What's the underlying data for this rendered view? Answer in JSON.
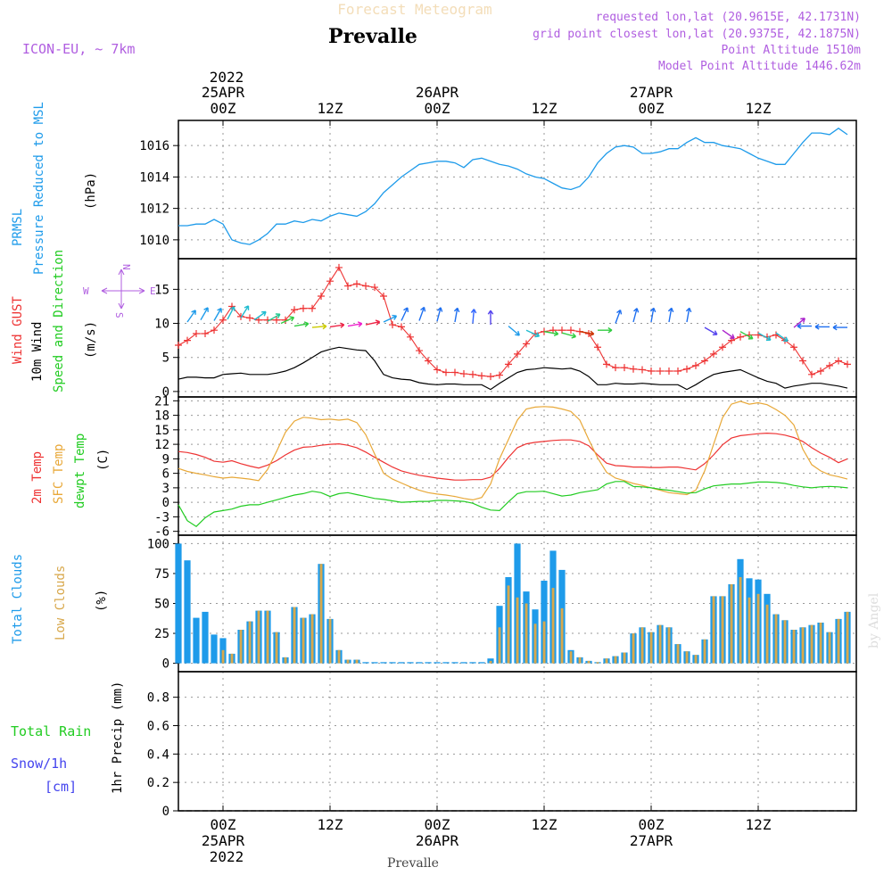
{
  "header": {
    "title_faded": "Forecast Meteogram",
    "location": "Prevalle",
    "model": "ICON-EU, ~ 7km",
    "requested": "requested lon,lat (20.9615E, 42.1731N)",
    "grid_point": "grid point closest lon,lat (20.9375E, 42.1875N)",
    "point_alt": "Point Altitude 1510m",
    "model_alt": "Model Point Altitude 1446.62m"
  },
  "time_axis": {
    "year": "2022",
    "top_labels": [
      {
        "t": 0,
        "date": "25APR",
        "hour": "00Z"
      },
      {
        "t": 12,
        "date": "",
        "hour": "12Z"
      },
      {
        "t": 24,
        "date": "26APR",
        "hour": "00Z"
      },
      {
        "t": 36,
        "date": "",
        "hour": "12Z"
      },
      {
        "t": 48,
        "date": "27APR",
        "hour": "00Z"
      },
      {
        "t": 60,
        "date": "",
        "hour": "12Z"
      }
    ],
    "t_range": [
      -5,
      71
    ],
    "footer_location": "Prevalle"
  },
  "colors": {
    "pressure": "#1e9bea",
    "gust": "#ee3333",
    "wind": "#000000",
    "temp2m": "#ee3333",
    "sfc": "#e8a838",
    "dewpt": "#22cc22",
    "total_clouds": "#1e9bea",
    "low_clouds": "#d8a84c",
    "violet": "#b05ee0",
    "rain": "#22cc22",
    "snow": "#4444ee"
  },
  "panel_labels": {
    "pressure": [
      "PRMSL",
      "Pressure Reduced to MSL"
    ],
    "pressure_unit": "(hPa)",
    "wind": [
      "Wind GUST",
      "10m Wind",
      "Speed and Direction"
    ],
    "wind_unit": "(m/s)",
    "compass": {
      "n": "N",
      "s": "S",
      "w": "W",
      "e": "E"
    },
    "temp": [
      "2m Temp",
      "SFC Temp",
      "dewpt Temp"
    ],
    "temp_unit": "(C)",
    "clouds": [
      "Total Clouds",
      "Low Clouds"
    ],
    "clouds_unit": "(%)",
    "precip": [
      "Total  Rain",
      "Snow/1h",
      "[cm]"
    ],
    "precip_unit": "1hr Precip (mm)",
    "watermark": "by Angel"
  },
  "chart_data": [
    {
      "type": "line",
      "name": "pressure",
      "ylabel": "(hPa)",
      "ylim": [
        1008.8,
        1017.6
      ],
      "yticks": [
        1010,
        1012,
        1014,
        1016
      ],
      "x": [
        -5,
        -4,
        -3,
        -2,
        -1,
        0,
        1,
        2,
        3,
        4,
        5,
        6,
        7,
        8,
        9,
        10,
        11,
        12,
        13,
        14,
        15,
        16,
        17,
        18,
        19,
        20,
        21,
        22,
        23,
        24,
        25,
        26,
        27,
        28,
        29,
        30,
        31,
        32,
        33,
        34,
        35,
        36,
        37,
        38,
        39,
        40,
        41,
        42,
        43,
        44,
        45,
        46,
        47,
        48,
        49,
        50,
        51,
        52,
        53,
        54,
        55,
        56,
        57,
        58,
        59,
        60,
        61,
        62,
        63,
        64,
        65,
        66,
        67,
        68,
        69,
        70
      ],
      "values": [
        1010.9,
        1010.9,
        1011.0,
        1011.0,
        1011.3,
        1011.0,
        1010.0,
        1009.8,
        1009.7,
        1010.0,
        1010.4,
        1011.0,
        1011.0,
        1011.2,
        1011.1,
        1011.3,
        1011.2,
        1011.5,
        1011.7,
        1011.6,
        1011.5,
        1011.8,
        1012.3,
        1013.0,
        1013.5,
        1014.0,
        1014.4,
        1014.8,
        1014.9,
        1015.0,
        1015.0,
        1014.9,
        1014.6,
        1015.1,
        1015.2,
        1015.0,
        1014.8,
        1014.7,
        1014.5,
        1014.2,
        1014.0,
        1013.9,
        1013.6,
        1013.3,
        1013.2,
        1013.4,
        1014.0,
        1014.9,
        1015.5,
        1015.9,
        1016.0,
        1015.9,
        1015.5,
        1015.5,
        1015.6,
        1015.8,
        1015.8,
        1016.2,
        1016.5,
        1016.2,
        1016.2,
        1016.0,
        1015.9,
        1015.8,
        1015.5,
        1015.2,
        1015.0,
        1014.8,
        1014.8,
        1015.5,
        1016.2,
        1016.8,
        1016.8,
        1016.7,
        1017.1,
        1016.7
      ]
    },
    {
      "type": "line",
      "name": "wind",
      "ylabel": "(m/s)",
      "ylim": [
        -0.8,
        19.5
      ],
      "yticks": [
        0,
        5,
        10,
        15
      ],
      "x": [
        -5,
        -4,
        -3,
        -2,
        -1,
        0,
        1,
        2,
        3,
        4,
        5,
        6,
        7,
        8,
        9,
        10,
        11,
        12,
        13,
        14,
        15,
        16,
        17,
        18,
        19,
        20,
        21,
        22,
        23,
        24,
        25,
        26,
        27,
        28,
        29,
        30,
        31,
        32,
        33,
        34,
        35,
        36,
        37,
        38,
        39,
        40,
        41,
        42,
        43,
        44,
        45,
        46,
        47,
        48,
        49,
        50,
        51,
        52,
        53,
        54,
        55,
        56,
        57,
        58,
        59,
        60,
        61,
        62,
        63,
        64,
        65,
        66,
        67,
        68,
        69,
        70
      ],
      "gust": [
        6.8,
        7.5,
        8.5,
        8.5,
        9.0,
        10.5,
        12.5,
        11.0,
        10.8,
        10.5,
        10.5,
        10.5,
        10.5,
        12.0,
        12.2,
        12.2,
        14.0,
        16.2,
        18.2,
        15.5,
        15.8,
        15.5,
        15.3,
        14.0,
        9.8,
        9.5,
        8.0,
        6.0,
        4.5,
        3.2,
        2.8,
        2.8,
        2.6,
        2.5,
        2.3,
        2.2,
        2.4,
        4.0,
        5.5,
        7.0,
        8.5,
        8.8,
        9.0,
        9.0,
        9.0,
        8.8,
        8.5,
        6.5,
        4.0,
        3.5,
        3.5,
        3.3,
        3.2,
        3.0,
        3.0,
        3.0,
        3.0,
        3.3,
        3.8,
        4.5,
        5.5,
        6.5,
        7.5,
        8.0,
        8.3,
        8.3,
        8.0,
        8.3,
        7.5,
        6.5,
        4.5,
        2.5,
        3.0,
        3.8,
        4.5,
        4.0
      ],
      "speed": [
        1.8,
        2.1,
        2.1,
        2.0,
        2.0,
        2.5,
        2.6,
        2.7,
        2.5,
        2.5,
        2.5,
        2.7,
        3.0,
        3.5,
        4.2,
        5.0,
        5.8,
        6.2,
        6.5,
        6.3,
        6.1,
        6.0,
        4.5,
        2.5,
        2.0,
        1.8,
        1.7,
        1.3,
        1.1,
        1.0,
        1.1,
        1.1,
        1.0,
        1.0,
        1.0,
        0.3,
        1.2,
        2.0,
        2.8,
        3.2,
        3.3,
        3.5,
        3.4,
        3.3,
        3.4,
        3.0,
        2.2,
        1.0,
        1.0,
        1.2,
        1.1,
        1.1,
        1.2,
        1.1,
        1.0,
        1.0,
        1.0,
        0.3,
        1.0,
        1.8,
        2.5,
        2.8,
        3.0,
        3.2,
        2.6,
        2.0,
        1.5,
        1.2,
        0.5,
        0.8,
        1.0,
        1.2,
        1.2,
        1.0,
        0.8,
        0.5
      ],
      "arrows": [
        {
          "t": -4,
          "v": 10.2,
          "ang": -55,
          "c": "#1e9bea"
        },
        {
          "t": -2.5,
          "v": 10.5,
          "ang": -60,
          "c": "#1e9bea"
        },
        {
          "t": -1,
          "v": 10.4,
          "ang": -60,
          "c": "#1e9bea"
        },
        {
          "t": 0.5,
          "v": 10.6,
          "ang": -62,
          "c": "#20bcd0"
        },
        {
          "t": 2,
          "v": 10.8,
          "ang": -58,
          "c": "#20bcd0"
        },
        {
          "t": 3.5,
          "v": 10.5,
          "ang": -35,
          "c": "#20bcd0"
        },
        {
          "t": 5,
          "v": 10.3,
          "ang": -30,
          "c": "#20c890"
        },
        {
          "t": 6.5,
          "v": 10.0,
          "ang": -25,
          "c": "#30cc40"
        },
        {
          "t": 8,
          "v": 9.6,
          "ang": -10,
          "c": "#30cc40"
        },
        {
          "t": 10,
          "v": 9.4,
          "ang": -5,
          "c": "#cccc00"
        },
        {
          "t": 12,
          "v": 9.5,
          "ang": -8,
          "c": "#ee2244"
        },
        {
          "t": 14,
          "v": 9.6,
          "ang": -10,
          "c": "#ee22cc"
        },
        {
          "t": 16,
          "v": 9.8,
          "ang": -12,
          "c": "#ee2244"
        },
        {
          "t": 18,
          "v": 10.2,
          "ang": -25,
          "c": "#1e9bea"
        },
        {
          "t": 20,
          "v": 10.4,
          "ang": -65,
          "c": "#1e6ff0"
        },
        {
          "t": 22,
          "v": 10.4,
          "ang": -70,
          "c": "#1e6ff0"
        },
        {
          "t": 24,
          "v": 10.3,
          "ang": -75,
          "c": "#1e6ff0"
        },
        {
          "t": 26,
          "v": 10.2,
          "ang": -80,
          "c": "#1e6ff0"
        },
        {
          "t": 28,
          "v": 10.0,
          "ang": -85,
          "c": "#3366ff"
        },
        {
          "t": 30,
          "v": 9.8,
          "ang": -90,
          "c": "#5544ee"
        },
        {
          "t": 32,
          "v": 9.6,
          "ang": 40,
          "c": "#1e9bea"
        },
        {
          "t": 34,
          "v": 9.0,
          "ang": 25,
          "c": "#20bcd0"
        },
        {
          "t": 36,
          "v": 8.8,
          "ang": 10,
          "c": "#30cc40"
        },
        {
          "t": 38,
          "v": 8.6,
          "ang": 15,
          "c": "#30cc40"
        },
        {
          "t": 40,
          "v": 8.8,
          "ang": 10,
          "c": "#cc3300"
        },
        {
          "t": 42,
          "v": 9.0,
          "ang": 0,
          "c": "#30cc40"
        },
        {
          "t": 44,
          "v": 10.0,
          "ang": -70,
          "c": "#1e6ff0"
        },
        {
          "t": 46,
          "v": 10.2,
          "ang": -75,
          "c": "#1e6ff0"
        },
        {
          "t": 48,
          "v": 10.2,
          "ang": -80,
          "c": "#1e6ff0"
        },
        {
          "t": 50,
          "v": 10.2,
          "ang": -80,
          "c": "#1e6ff0"
        },
        {
          "t": 52,
          "v": 10.2,
          "ang": -80,
          "c": "#1e6ff0"
        },
        {
          "t": 54,
          "v": 9.4,
          "ang": 30,
          "c": "#5544ee"
        },
        {
          "t": 56,
          "v": 9.0,
          "ang": 35,
          "c": "#aa22cc"
        },
        {
          "t": 58,
          "v": 8.8,
          "ang": 30,
          "c": "#30cc40"
        },
        {
          "t": 60,
          "v": 8.6,
          "ang": 30,
          "c": "#20bcd0"
        },
        {
          "t": 62,
          "v": 8.6,
          "ang": 35,
          "c": "#20bcd0"
        },
        {
          "t": 64,
          "v": 9.4,
          "ang": -40,
          "c": "#aa22cc"
        },
        {
          "t": 66,
          "v": 9.6,
          "ang": 180,
          "c": "#1e6ff0"
        },
        {
          "t": 68,
          "v": 9.5,
          "ang": 180,
          "c": "#1e6ff0"
        },
        {
          "t": 70,
          "v": 9.4,
          "ang": 180,
          "c": "#1e6ff0"
        }
      ]
    },
    {
      "type": "line",
      "name": "temperature",
      "ylabel": "(C)",
      "ylim": [
        -6.8,
        21.8
      ],
      "yticks": [
        -6,
        -3,
        0,
        3,
        6,
        9,
        12,
        15,
        18,
        21
      ],
      "x": [
        -5,
        -4,
        -3,
        -2,
        -1,
        0,
        1,
        2,
        3,
        4,
        5,
        6,
        7,
        8,
        9,
        10,
        11,
        12,
        13,
        14,
        15,
        16,
        17,
        18,
        19,
        20,
        21,
        22,
        23,
        24,
        25,
        26,
        27,
        28,
        29,
        30,
        31,
        32,
        33,
        34,
        35,
        36,
        37,
        38,
        39,
        40,
        41,
        42,
        43,
        44,
        45,
        46,
        47,
        48,
        49,
        50,
        51,
        52,
        53,
        54,
        55,
        56,
        57,
        58,
        59,
        60,
        61,
        62,
        63,
        64,
        65,
        66,
        67,
        68,
        69,
        70
      ],
      "temp2m": [
        10.5,
        10.3,
        9.9,
        9.3,
        8.5,
        8.3,
        8.6,
        8.0,
        7.5,
        7.1,
        7.7,
        8.6,
        9.8,
        10.8,
        11.4,
        11.5,
        11.8,
        12.0,
        12.1,
        11.8,
        11.3,
        10.4,
        9.3,
        8.3,
        7.3,
        6.5,
        6.0,
        5.6,
        5.3,
        5.0,
        4.8,
        4.6,
        4.6,
        4.7,
        4.7,
        5.2,
        7.0,
        9.3,
        11.3,
        12.1,
        12.4,
        12.6,
        12.8,
        12.9,
        12.9,
        12.6,
        11.7,
        9.8,
        8.1,
        7.6,
        7.5,
        7.3,
        7.3,
        7.2,
        7.2,
        7.3,
        7.3,
        7.0,
        6.7,
        8.0,
        9.8,
        11.9,
        13.3,
        13.8,
        14.0,
        14.2,
        14.3,
        14.2,
        13.9,
        13.4,
        12.6,
        11.3,
        10.2,
        9.3,
        8.2,
        9.0
      ],
      "sfc": [
        7.0,
        6.4,
        6.0,
        5.7,
        5.3,
        5.0,
        5.2,
        5.0,
        4.8,
        4.5,
        6.8,
        10.5,
        14.5,
        16.8,
        17.6,
        17.4,
        17.1,
        17.2,
        17.0,
        17.2,
        16.5,
        14.0,
        10.0,
        6.0,
        4.8,
        4.0,
        3.2,
        2.5,
        2.0,
        1.7,
        1.5,
        1.2,
        0.8,
        0.5,
        1.0,
        3.8,
        9.0,
        13.0,
        17.0,
        19.3,
        19.7,
        19.8,
        19.7,
        19.3,
        18.8,
        17.0,
        13.0,
        9.2,
        6.2,
        5.0,
        4.5,
        3.9,
        3.5,
        3.0,
        2.5,
        2.0,
        1.8,
        1.6,
        2.5,
        6.5,
        12.0,
        17.5,
        20.3,
        20.9,
        20.3,
        20.6,
        20.2,
        19.2,
        18.0,
        16.0,
        11.0,
        7.8,
        6.5,
        5.7,
        5.3,
        4.8
      ],
      "dewpt": [
        -0.5,
        -3.8,
        -5.0,
        -3.2,
        -2.0,
        -1.7,
        -1.4,
        -0.8,
        -0.5,
        -0.5,
        0.0,
        0.5,
        1.0,
        1.5,
        1.8,
        2.3,
        2.0,
        1.2,
        1.8,
        2.0,
        1.6,
        1.2,
        0.8,
        0.6,
        0.3,
        0.0,
        0.1,
        0.2,
        0.2,
        0.4,
        0.4,
        0.3,
        0.2,
        -0.2,
        -1.0,
        -1.6,
        -1.7,
        0.1,
        1.8,
        2.2,
        2.2,
        2.3,
        1.8,
        1.3,
        1.5,
        2.0,
        2.3,
        2.6,
        3.8,
        4.3,
        4.3,
        3.3,
        3.2,
        3.0,
        2.7,
        2.5,
        2.2,
        1.9,
        2.0,
        2.8,
        3.4,
        3.6,
        3.8,
        3.8,
        4.0,
        4.2,
        4.2,
        4.1,
        3.9,
        3.5,
        3.2,
        3.0,
        3.2,
        3.3,
        3.2,
        3.0
      ]
    },
    {
      "type": "bar",
      "name": "clouds",
      "ylabel": "(%)",
      "ylim": [
        -7,
        107
      ],
      "yticks": [
        0,
        25,
        50,
        75,
        100
      ],
      "x": [
        -5,
        -4,
        -3,
        -2,
        -1,
        0,
        1,
        2,
        3,
        4,
        5,
        6,
        7,
        8,
        9,
        10,
        11,
        12,
        13,
        14,
        15,
        16,
        17,
        18,
        19,
        20,
        21,
        22,
        23,
        24,
        25,
        26,
        27,
        28,
        29,
        30,
        31,
        32,
        33,
        34,
        35,
        36,
        37,
        38,
        39,
        40,
        41,
        42,
        43,
        44,
        45,
        46,
        47,
        48,
        49,
        50,
        51,
        52,
        53,
        54,
        55,
        56,
        57,
        58,
        59,
        60,
        61,
        62,
        63,
        64,
        65,
        66,
        67,
        68,
        69,
        70
      ],
      "total": [
        100,
        86,
        38,
        43,
        24,
        21,
        8,
        28,
        35,
        44,
        44,
        26,
        5,
        47,
        38,
        41,
        83,
        37,
        11,
        3,
        3,
        1,
        1,
        1,
        1,
        1,
        1,
        1,
        1,
        1,
        1,
        1,
        1,
        1,
        1,
        4,
        48,
        72,
        100,
        60,
        45,
        69,
        94,
        78,
        11,
        5,
        2,
        1,
        4,
        6,
        9,
        25,
        30,
        26,
        32,
        30,
        16,
        10,
        7,
        20,
        56,
        56,
        66,
        87,
        71,
        70,
        58,
        41,
        36,
        28,
        30,
        32,
        34,
        26,
        37,
        43
      ],
      "low": [
        0,
        0,
        0,
        0,
        0,
        11,
        8,
        28,
        35,
        44,
        44,
        26,
        5,
        47,
        38,
        41,
        83,
        37,
        11,
        3,
        3,
        0,
        0,
        0,
        0,
        0,
        0,
        0,
        0,
        0,
        0,
        0,
        0,
        0,
        0,
        2,
        30,
        65,
        55,
        50,
        33,
        35,
        63,
        46,
        10,
        5,
        2,
        1,
        4,
        6,
        9,
        25,
        30,
        26,
        32,
        30,
        16,
        10,
        7,
        20,
        56,
        56,
        66,
        72,
        55,
        58,
        49,
        41,
        36,
        28,
        30,
        32,
        34,
        26,
        37,
        43
      ]
    },
    {
      "type": "bar",
      "name": "precipitation",
      "ylabel": "1hr Precip (mm)",
      "ylim": [
        0,
        0.98
      ],
      "yticks": [
        0,
        0.2,
        0.4,
        0.6,
        0.8
      ],
      "ytick_labels": [
        "0",
        "0.2",
        "0.4",
        "0.6",
        "0.8"
      ],
      "rain": [],
      "snow": []
    }
  ]
}
